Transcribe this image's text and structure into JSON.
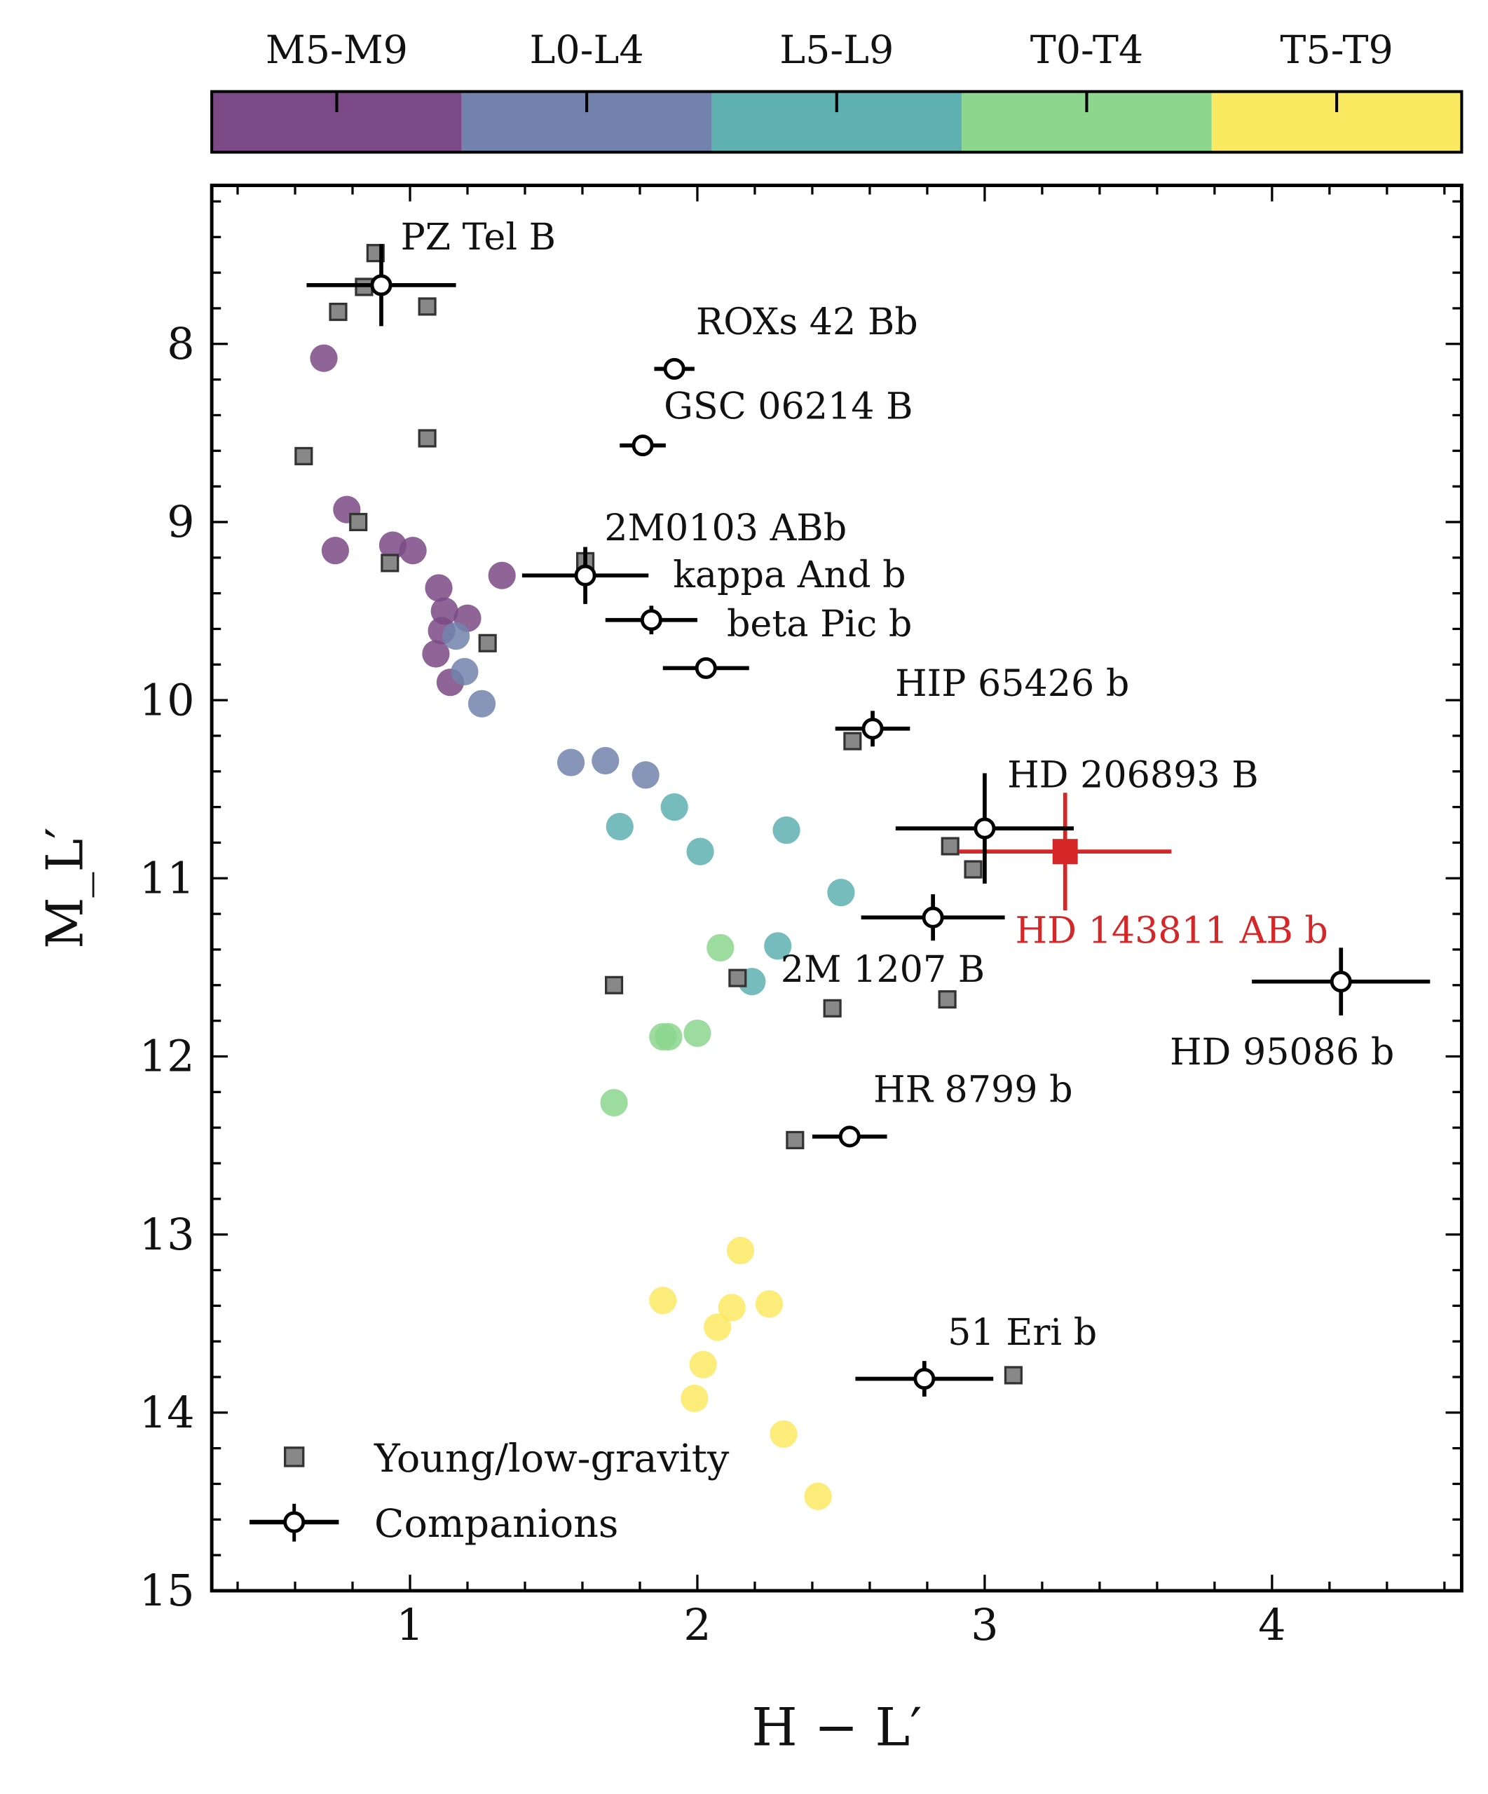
{
  "chart_data": {
    "type": "scatter",
    "title": "",
    "xlabel": "H − L′",
    "ylabel": "M_L′",
    "xlim": [
      0.31,
      4.66
    ],
    "ylim": [
      15,
      7.11
    ],
    "y_inverted": true,
    "x_ticks": [
      "1",
      "2",
      "3",
      "4"
    ],
    "y_ticks": [
      "8",
      "9",
      "10",
      "11",
      "12",
      "13",
      "14",
      "15"
    ],
    "grid": false,
    "colorbar": {
      "position": "top",
      "labels": [
        "M5-M9",
        "L0-L4",
        "L5-L9",
        "T0-T4",
        "T5-T9"
      ],
      "colors": [
        "#7b4a86",
        "#7282ad",
        "#5fb0b0",
        "#8cd68e",
        "#fbe961"
      ]
    },
    "legend": {
      "position": "bottom-left",
      "entries": [
        "Young/low-gravity",
        "Companions"
      ]
    },
    "field_dwarfs": [
      {
        "class": 0,
        "x": 0.7,
        "y": 8.08
      },
      {
        "class": 0,
        "x": 0.78,
        "y": 8.93
      },
      {
        "class": 0,
        "x": 0.74,
        "y": 9.16
      },
      {
        "class": 0,
        "x": 0.94,
        "y": 9.13
      },
      {
        "class": 0,
        "x": 1.01,
        "y": 9.16
      },
      {
        "class": 0,
        "x": 1.32,
        "y": 9.3
      },
      {
        "class": 0,
        "x": 1.1,
        "y": 9.37
      },
      {
        "class": 0,
        "x": 1.12,
        "y": 9.5
      },
      {
        "class": 0,
        "x": 1.2,
        "y": 9.54
      },
      {
        "class": 0,
        "x": 1.11,
        "y": 9.61
      },
      {
        "class": 0,
        "x": 1.09,
        "y": 9.74
      },
      {
        "class": 0,
        "x": 1.14,
        "y": 9.9
      },
      {
        "class": 1,
        "x": 1.16,
        "y": 9.64
      },
      {
        "class": 1,
        "x": 1.19,
        "y": 9.84
      },
      {
        "class": 1,
        "x": 1.25,
        "y": 10.02
      },
      {
        "class": 1,
        "x": 1.56,
        "y": 10.35
      },
      {
        "class": 1,
        "x": 1.68,
        "y": 10.34
      },
      {
        "class": 1,
        "x": 1.82,
        "y": 10.42
      },
      {
        "class": 2,
        "x": 1.92,
        "y": 10.6
      },
      {
        "class": 2,
        "x": 1.73,
        "y": 10.71
      },
      {
        "class": 2,
        "x": 2.01,
        "y": 10.85
      },
      {
        "class": 2,
        "x": 2.31,
        "y": 10.73
      },
      {
        "class": 2,
        "x": 2.5,
        "y": 11.08
      },
      {
        "class": 2,
        "x": 2.28,
        "y": 11.38
      },
      {
        "class": 2,
        "x": 2.19,
        "y": 11.58
      },
      {
        "class": 3,
        "x": 2.08,
        "y": 11.39
      },
      {
        "class": 3,
        "x": 1.88,
        "y": 11.89
      },
      {
        "class": 3,
        "x": 1.9,
        "y": 11.89
      },
      {
        "class": 3,
        "x": 2.0,
        "y": 11.87
      },
      {
        "class": 3,
        "x": 1.71,
        "y": 12.26
      },
      {
        "class": 4,
        "x": 2.15,
        "y": 13.09
      },
      {
        "class": 4,
        "x": 1.88,
        "y": 13.37
      },
      {
        "class": 4,
        "x": 2.12,
        "y": 13.41
      },
      {
        "class": 4,
        "x": 2.25,
        "y": 13.39
      },
      {
        "class": 4,
        "x": 2.07,
        "y": 13.52
      },
      {
        "class": 4,
        "x": 2.02,
        "y": 13.73
      },
      {
        "class": 4,
        "x": 1.99,
        "y": 13.92
      },
      {
        "class": 4,
        "x": 2.3,
        "y": 14.12
      },
      {
        "class": 4,
        "x": 2.42,
        "y": 14.47
      }
    ],
    "young_low_gravity": [
      {
        "x": 0.88,
        "y": 7.49
      },
      {
        "x": 0.84,
        "y": 7.68
      },
      {
        "x": 0.75,
        "y": 7.82
      },
      {
        "x": 1.06,
        "y": 7.79
      },
      {
        "x": 1.06,
        "y": 8.53
      },
      {
        "x": 0.63,
        "y": 8.63
      },
      {
        "x": 0.82,
        "y": 9.0
      },
      {
        "x": 0.93,
        "y": 9.23
      },
      {
        "x": 1.61,
        "y": 9.22
      },
      {
        "x": 1.27,
        "y": 9.68
      },
      {
        "x": 2.54,
        "y": 10.23
      },
      {
        "x": 2.88,
        "y": 10.82
      },
      {
        "x": 2.96,
        "y": 10.95
      },
      {
        "x": 1.71,
        "y": 11.6
      },
      {
        "x": 2.14,
        "y": 11.56
      },
      {
        "x": 2.47,
        "y": 11.73
      },
      {
        "x": 2.87,
        "y": 11.68
      },
      {
        "x": 2.34,
        "y": 12.47
      },
      {
        "x": 3.1,
        "y": 13.79
      }
    ],
    "companions": [
      {
        "name": "PZ Tel B",
        "x": 0.9,
        "y": 7.67,
        "xerr": 0.26,
        "yerr": 0.23
      },
      {
        "name": "ROXs 42 Bb",
        "x": 1.92,
        "y": 8.14,
        "xerr": 0.07,
        "yerr": 0.04
      },
      {
        "name": "GSC 06214 B",
        "x": 1.81,
        "y": 8.57,
        "xerr": 0.08,
        "yerr": 0.04
      },
      {
        "name": "2M0103 ABb",
        "x": 1.61,
        "y": 9.3,
        "xerr": 0.22,
        "yerr": 0.16
      },
      {
        "name": "kappa And b",
        "x": 1.84,
        "y": 9.55,
        "xerr": 0.16,
        "yerr": 0.08
      },
      {
        "name": "beta Pic b",
        "x": 2.03,
        "y": 9.82,
        "xerr": 0.15,
        "yerr": 0.04
      },
      {
        "name": "HIP 65426 b",
        "x": 2.61,
        "y": 10.16,
        "xerr": 0.13,
        "yerr": 0.1
      },
      {
        "name": "HD 206893 B",
        "x": 3.0,
        "y": 10.72,
        "xerr": 0.31,
        "yerr": 0.31
      },
      {
        "name": "2M 1207 B",
        "x": 2.82,
        "y": 11.22,
        "xerr": 0.25,
        "yerr": 0.13
      },
      {
        "name": "HD 95086 b",
        "x": 4.24,
        "y": 11.58,
        "xerr": 0.31,
        "yerr": 0.19
      },
      {
        "name": "HR 8799 b",
        "x": 2.53,
        "y": 12.45,
        "xerr": 0.13,
        "yerr": 0.06
      },
      {
        "name": "51 Eri b",
        "x": 2.79,
        "y": 13.81,
        "xerr": 0.24,
        "yerr": 0.1
      }
    ],
    "highlight": {
      "name": "HD 143811 AB b",
      "x": 3.28,
      "y": 10.85,
      "xerr": 0.37,
      "yerr": 0.33,
      "color": "#d62728"
    }
  }
}
